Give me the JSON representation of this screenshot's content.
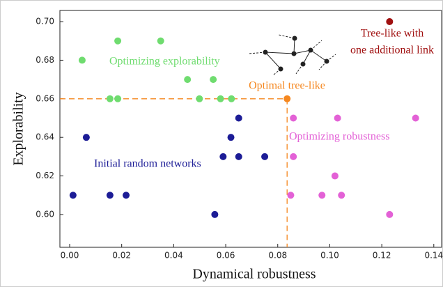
{
  "chart_data": {
    "type": "scatter",
    "x_label": "Dynamical robustness",
    "y_label": "Explorability",
    "xlim": [
      -0.00375,
      0.143
    ],
    "ylim": [
      0.583,
      0.7058
    ],
    "xticks": [
      {
        "value": 0,
        "label": "0.00"
      },
      {
        "value": 0.02,
        "label": "0.02"
      },
      {
        "value": 0.04,
        "label": "0.04"
      },
      {
        "value": 0.06,
        "label": "0.06"
      },
      {
        "value": 0.08,
        "label": "0.08"
      },
      {
        "value": 0.1,
        "label": "0.10"
      },
      {
        "value": 0.12,
        "label": "0.12"
      },
      {
        "value": 0.14,
        "label": "0.14"
      }
    ],
    "yticks": [
      {
        "value": 0.6,
        "label": "0.60"
      },
      {
        "value": 0.62,
        "label": "0.62"
      },
      {
        "value": 0.64,
        "label": "0.64"
      },
      {
        "value": 0.66,
        "label": "0.66"
      },
      {
        "value": 0.68,
        "label": "0.68"
      },
      {
        "value": 0.7,
        "label": "0.70"
      }
    ],
    "series": [
      {
        "name": [
          "Initial random networks"
        ],
        "color": "#1c1c96",
        "x": [
          0.0013,
          0.0064,
          0.0155,
          0.0217,
          0.065,
          0.062,
          0.059,
          0.065,
          0.075,
          0.0558
        ],
        "values": [
          0.61,
          0.64,
          0.61,
          0.61,
          0.65,
          0.64,
          0.63,
          0.63,
          0.63,
          0.6
        ]
      },
      {
        "name": [
          "Optimizing explorability"
        ],
        "color": "#6fdc6f",
        "x": [
          0.0048,
          0.0185,
          0.035,
          0.0155,
          0.0185,
          0.0453,
          0.0552,
          0.0499,
          0.058,
          0.0622
        ],
        "values": [
          0.68,
          0.69,
          0.69,
          0.66,
          0.66,
          0.67,
          0.67,
          0.66,
          0.66,
          0.66
        ]
      },
      {
        "name": [
          "Optimal tree-like"
        ],
        "color": "#f5871f",
        "x": [
          0.0836
        ],
        "values": [
          0.66
        ]
      },
      {
        "name": [
          "Optimizing robustness"
        ],
        "color": "#e361d6",
        "x": [
          0.086,
          0.103,
          0.133,
          0.086,
          0.102,
          0.085,
          0.097,
          0.1045,
          0.123
        ],
        "values": [
          0.65,
          0.65,
          0.65,
          0.63,
          0.62,
          0.61,
          0.61,
          0.61,
          0.6
        ]
      },
      {
        "name": [
          "Tree-like with",
          "one additional link"
        ],
        "color": "#a01010",
        "x": [
          0.123
        ],
        "values": [
          0.7
        ]
      }
    ]
  }
}
